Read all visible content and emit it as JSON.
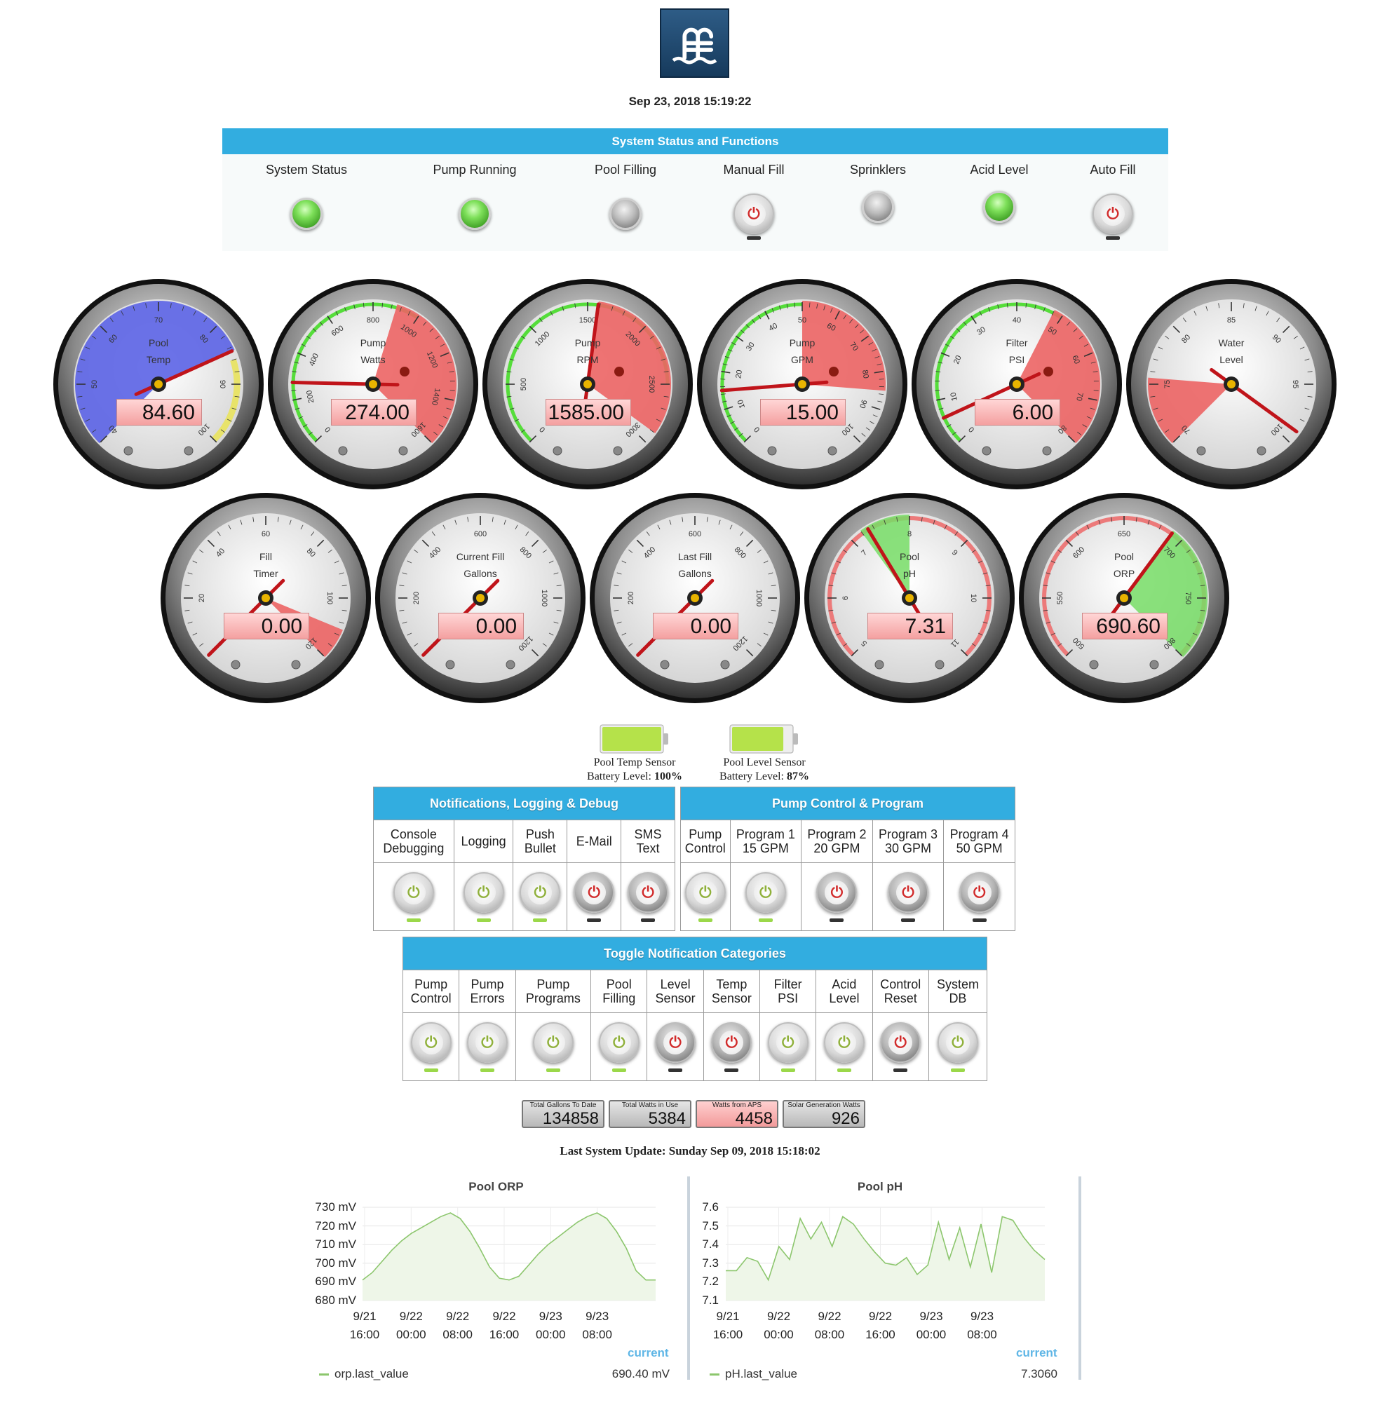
{
  "datetime": "Sep 23, 2018 15:19:22",
  "status": {
    "title": "System Status and Functions",
    "items": [
      {
        "label": "System Status",
        "state": "on"
      },
      {
        "label": "Pump Running",
        "state": "on"
      },
      {
        "label": "Pool Filling",
        "state": "off"
      },
      {
        "label": "Manual Fill",
        "state": "button-off"
      },
      {
        "label": "Sprinklers",
        "state": "off"
      },
      {
        "label": "Acid Level",
        "state": "on"
      },
      {
        "label": "Auto Fill",
        "state": "button-off"
      }
    ]
  },
  "gauges": [
    {
      "line1": "Pool",
      "line2": "Temp",
      "value": "84.60",
      "min": 40,
      "max": 100,
      "ticks": [
        "40",
        "50",
        "60",
        "70",
        "80",
        "90",
        "100"
      ],
      "reading": 84.6,
      "zone_color": "#5b63e6"
    },
    {
      "line1": "Pump",
      "line2": "Watts",
      "value": "274.00",
      "min": 0,
      "max": 1600,
      "ticks": [
        "0",
        "200",
        "400",
        "600",
        "800",
        "1000",
        "1200",
        "1400",
        "1600"
      ],
      "reading": 274
    },
    {
      "line1": "Pump",
      "line2": "RPM",
      "value": "1585.00",
      "min": 0,
      "max": 3000,
      "ticks": [
        "0",
        "500",
        "1000",
        "1500",
        "2000",
        "2500",
        "3000"
      ],
      "reading": 1585
    },
    {
      "line1": "Pump",
      "line2": "GPM",
      "value": "15.00",
      "min": 0,
      "max": 100,
      "ticks": [
        "0",
        "10",
        "20",
        "30",
        "40",
        "50",
        "60",
        "70",
        "80",
        "90",
        "100"
      ],
      "reading": 15
    },
    {
      "line1": "Filter",
      "line2": "PSI",
      "value": "6.00",
      "min": 0,
      "max": 80,
      "ticks": [
        "0",
        "10",
        "20",
        "30",
        "40",
        "50",
        "60",
        "70",
        "80"
      ],
      "reading": 6
    },
    {
      "line1": "Water",
      "line2": "Level",
      "value": "",
      "min": 70,
      "max": 100,
      "ticks": [
        "70",
        "75",
        "80",
        "85",
        "90",
        "95",
        "100"
      ],
      "reading": 99
    },
    {
      "line1": "Fill",
      "line2": "Timer",
      "value": "0.00",
      "min": 0,
      "max": 120,
      "ticks": [
        "0",
        "20",
        "40",
        "60",
        "80",
        "100",
        "120"
      ],
      "reading": 0
    },
    {
      "line1": "Current Fill",
      "line2": "Gallons",
      "value": "0.00",
      "min": 0,
      "max": 1200,
      "ticks": [
        "0",
        "200",
        "400",
        "600",
        "800",
        "1000",
        "1200"
      ],
      "reading": 0
    },
    {
      "line1": "Last Fill",
      "line2": "Gallons",
      "value": "0.00",
      "min": 0,
      "max": 1200,
      "ticks": [
        "0",
        "200",
        "400",
        "600",
        "800",
        "1000",
        "1200"
      ],
      "reading": 0
    },
    {
      "line1": "Pool",
      "line2": "pH",
      "value": "7.31",
      "min": 5,
      "max": 11,
      "ticks": [
        "5",
        "6",
        "7",
        "8",
        "9",
        "10",
        "11"
      ],
      "reading": 7.31
    },
    {
      "line1": "Pool",
      "line2": "ORP",
      "value": "690.60",
      "min": 500,
      "max": 800,
      "ticks": [
        "500",
        "550",
        "600",
        "650",
        "700",
        "750",
        "800"
      ],
      "reading": 690.6
    }
  ],
  "batteries": [
    {
      "line1": "Pool Temp Sensor",
      "line2_prefix": "Battery Level: ",
      "level": "100%",
      "fill": 1.0
    },
    {
      "line1": "Pool Level Sensor",
      "line2_prefix": "Battery Level: ",
      "level": "87%",
      "fill": 0.87
    }
  ],
  "notifications": {
    "title": "Notifications, Logging & Debug",
    "items": [
      {
        "label1": "Console",
        "label2": "Debugging",
        "state": "on"
      },
      {
        "label1": "Logging",
        "label2": "",
        "state": "on"
      },
      {
        "label1": "Push",
        "label2": "Bullet",
        "state": "on"
      },
      {
        "label1": "E-Mail",
        "label2": "",
        "state": "off"
      },
      {
        "label1": "SMS",
        "label2": "Text",
        "state": "off"
      }
    ]
  },
  "pump_control": {
    "title": "Pump Control & Program",
    "items": [
      {
        "label1": "Pump",
        "label2": "Control",
        "state": "on"
      },
      {
        "label1": "Program 1",
        "label2": "15 GPM",
        "state": "on"
      },
      {
        "label1": "Program 2",
        "label2": "20 GPM",
        "state": "off"
      },
      {
        "label1": "Program 3",
        "label2": "30 GPM",
        "state": "off"
      },
      {
        "label1": "Program 4",
        "label2": "50 GPM",
        "state": "off"
      }
    ]
  },
  "categories": {
    "title": "Toggle Notification Categories",
    "items": [
      {
        "label1": "Pump",
        "label2": "Control",
        "state": "on"
      },
      {
        "label1": "Pump",
        "label2": "Errors",
        "state": "on"
      },
      {
        "label1": "Pump",
        "label2": "Programs",
        "state": "on"
      },
      {
        "label1": "Pool",
        "label2": "Filling",
        "state": "on"
      },
      {
        "label1": "Level",
        "label2": "Sensor",
        "state": "off"
      },
      {
        "label1": "Temp",
        "label2": "Sensor",
        "state": "off"
      },
      {
        "label1": "Filter",
        "label2": "PSI",
        "state": "on"
      },
      {
        "label1": "Acid",
        "label2": "Level",
        "state": "on"
      },
      {
        "label1": "Control",
        "label2": "Reset",
        "state": "off"
      },
      {
        "label1": "System",
        "label2": "DB",
        "state": "on"
      }
    ]
  },
  "counters": [
    {
      "title": "Total Gallons To Date",
      "value": "134858",
      "color": "gray"
    },
    {
      "title": "Total Watts in Use",
      "value": "5384",
      "color": "gray"
    },
    {
      "title": "Watts from APS",
      "value": "4458",
      "color": "red"
    },
    {
      "title": "Solar Generation Watts",
      "value": "926",
      "color": "gray"
    }
  ],
  "last_update": "Last System Update: Sunday Sep 09, 2018 15:18:02",
  "chart_data": [
    {
      "type": "area",
      "title": "Pool ORP",
      "yticks": [
        "680 mV",
        "690 mV",
        "700 mV",
        "710 mV",
        "720 mV",
        "730 mV"
      ],
      "ylim": [
        680,
        730
      ],
      "xticks": [
        [
          "9/21",
          "16:00"
        ],
        [
          "9/22",
          "00:00"
        ],
        [
          "9/22",
          "08:00"
        ],
        [
          "9/22",
          "16:00"
        ],
        [
          "9/23",
          "00:00"
        ],
        [
          "9/23",
          "08:00"
        ]
      ],
      "series": [
        {
          "name": "orp.last_value",
          "values": [
            691,
            695,
            701,
            707,
            712,
            716,
            719,
            722,
            725,
            727,
            724,
            717,
            708,
            698,
            692,
            691,
            693,
            699,
            705,
            710,
            714,
            718,
            722,
            725,
            727,
            724,
            717,
            708,
            696,
            691,
            691
          ]
        }
      ],
      "legend_current_label": "current",
      "current": "690.40 mV"
    },
    {
      "type": "area",
      "title": "Pool pH",
      "yticks": [
        "7.1",
        "7.2",
        "7.3",
        "7.4",
        "7.5",
        "7.6"
      ],
      "ylim": [
        7.1,
        7.6
      ],
      "xticks": [
        [
          "9/21",
          "16:00"
        ],
        [
          "9/22",
          "00:00"
        ],
        [
          "9/22",
          "08:00"
        ],
        [
          "9/22",
          "16:00"
        ],
        [
          "9/23",
          "00:00"
        ],
        [
          "9/23",
          "08:00"
        ]
      ],
      "series": [
        {
          "name": "pH.last_value",
          "values": [
            7.26,
            7.26,
            7.33,
            7.31,
            7.21,
            7.39,
            7.32,
            7.54,
            7.43,
            7.52,
            7.39,
            7.55,
            7.51,
            7.43,
            7.36,
            7.3,
            7.29,
            7.33,
            7.24,
            7.29,
            7.52,
            7.32,
            7.49,
            7.28,
            7.51,
            7.25,
            7.55,
            7.53,
            7.44,
            7.37,
            7.32
          ]
        }
      ],
      "legend_current_label": "current",
      "current": "7.3060"
    }
  ]
}
